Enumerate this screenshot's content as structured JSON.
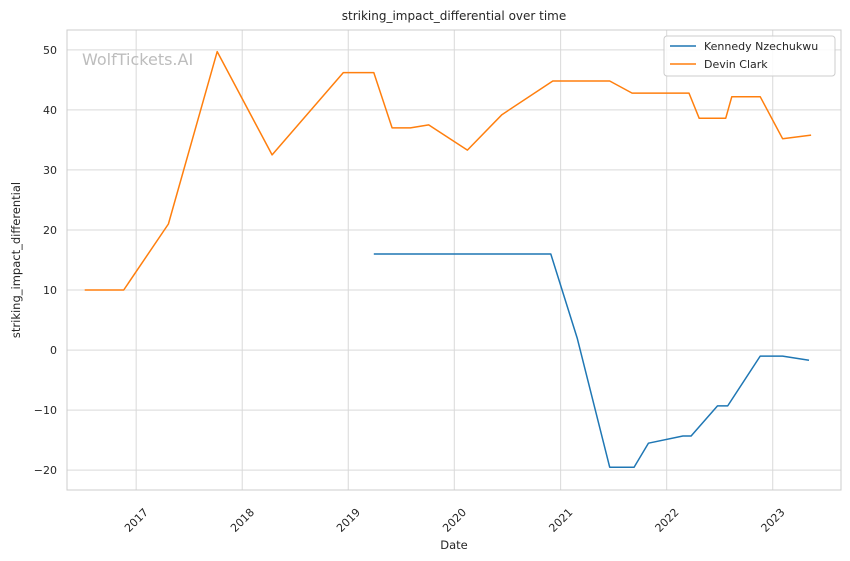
{
  "chart_data": {
    "type": "line",
    "title": "striking_impact_differential over time",
    "xlabel": "Date",
    "ylabel": "striking_impact_differential",
    "watermark": "WolfTickets.AI",
    "x_tick_labels": [
      "2017",
      "2018",
      "2019",
      "2020",
      "2021",
      "2022",
      "2023"
    ],
    "y_ticks": [
      -20,
      -10,
      0,
      10,
      20,
      30,
      40,
      50
    ],
    "y_tick_labels": [
      "−20",
      "−10",
      "0",
      "10",
      "20",
      "30",
      "40",
      "50"
    ],
    "xlim": [
      "2016-05-08",
      "2023-08-24"
    ],
    "ylim": [
      -23.3,
      53.3
    ],
    "grid": true,
    "legend_position": "top-right",
    "series": [
      {
        "name": "Kennedy Nzechukwu",
        "color": "#1f77b4",
        "points": [
          [
            "2019-03-30",
            16.0
          ],
          [
            "2020-11-28",
            16.0
          ],
          [
            "2021-02-27",
            2.0
          ],
          [
            "2021-06-19",
            -19.5
          ],
          [
            "2021-09-11",
            -19.5
          ],
          [
            "2021-10-30",
            -15.5
          ],
          [
            "2022-02-26",
            -14.3
          ],
          [
            "2022-03-26",
            -14.3
          ],
          [
            "2022-06-25",
            -9.3
          ],
          [
            "2022-07-30",
            -9.3
          ],
          [
            "2022-11-19",
            -1.0
          ],
          [
            "2023-02-04",
            -1.0
          ],
          [
            "2023-05-06",
            -1.7
          ]
        ]
      },
      {
        "name": "Devin Clark",
        "color": "#ff7f0e",
        "points": [
          [
            "2016-07-08",
            10.0
          ],
          [
            "2016-11-19",
            10.0
          ],
          [
            "2017-04-22",
            21.0
          ],
          [
            "2017-10-07",
            49.7
          ],
          [
            "2018-04-14",
            32.5
          ],
          [
            "2018-12-15",
            46.2
          ],
          [
            "2019-03-30",
            46.2
          ],
          [
            "2019-06-01",
            37.0
          ],
          [
            "2019-08-03",
            37.0
          ],
          [
            "2019-10-05",
            37.5
          ],
          [
            "2020-02-15",
            33.3
          ],
          [
            "2020-06-13",
            39.2
          ],
          [
            "2020-12-05",
            44.8
          ],
          [
            "2021-06-19",
            44.8
          ],
          [
            "2021-09-04",
            42.8
          ],
          [
            "2022-03-19",
            42.8
          ],
          [
            "2022-04-23",
            38.6
          ],
          [
            "2022-07-23",
            38.6
          ],
          [
            "2022-08-13",
            42.2
          ],
          [
            "2022-11-19",
            42.2
          ],
          [
            "2023-02-04",
            35.2
          ],
          [
            "2023-05-13",
            35.8
          ]
        ]
      }
    ]
  }
}
